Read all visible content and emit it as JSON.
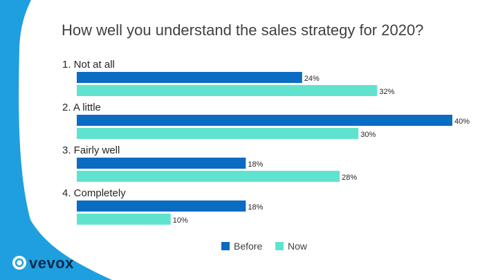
{
  "brand": {
    "logo_text": "vevox",
    "accent_color": "#1a9ad9",
    "background_shape_color": "#1f9fe0"
  },
  "chart_data": {
    "type": "bar",
    "orientation": "horizontal",
    "title": "How well you understand the sales strategy for 2020?",
    "categories": [
      "1.  Not at all",
      "2.  A little",
      "3.  Fairly well",
      "4.  Completely"
    ],
    "series": [
      {
        "name": "Before",
        "values": [
          24,
          40,
          18,
          18
        ],
        "labels": [
          "24%",
          "40%",
          "18%",
          "18%"
        ],
        "color": "#0a6cc2"
      },
      {
        "name": "Now",
        "values": [
          32,
          30,
          28,
          10
        ],
        "labels": [
          "32%",
          "30%",
          "28%",
          "10%"
        ],
        "color": "#5fe3cf"
      }
    ],
    "xlim": [
      0,
      40
    ],
    "grid": false,
    "legend_position": "bottom-center"
  }
}
